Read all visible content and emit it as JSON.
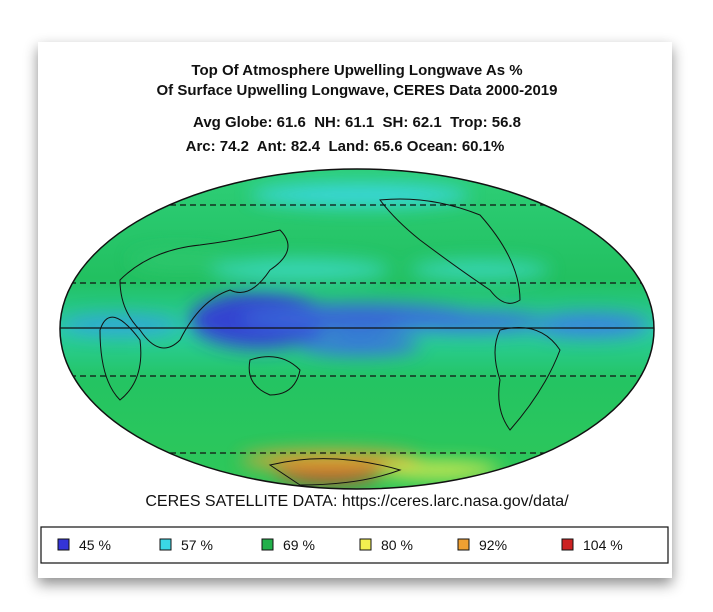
{
  "title": [
    "Top Of Atmosphere Upwelling Longwave As %",
    "Of Surface Upwelling Longwave, CERES Data 2000-2019"
  ],
  "stats": [
    "Avg Globe: 61.6  NH: 61.1  SH: 62.1  Trop: 56.8",
    "Arc: 74.2  Ant: 82.4  Land: 65.6 Ocean: 60.1%"
  ],
  "source": "CERES SATELLITE DATA: https://ceres.larc.nasa.gov/data/",
  "legend": [
    {
      "label": "45 %",
      "color": "#3434d8"
    },
    {
      "label": "57 %",
      "color": "#3ad8e6"
    },
    {
      "label": "69 %",
      "color": "#22b04a"
    },
    {
      "label": "80 %",
      "color": "#f2f050"
    },
    {
      "label": "92%",
      "color": "#f0a032"
    },
    {
      "label": "104 %",
      "color": "#cc2222"
    }
  ]
}
